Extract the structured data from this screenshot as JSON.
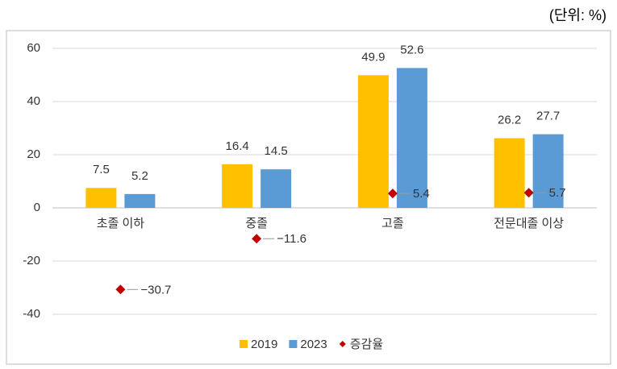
{
  "chart_data": {
    "type": "bar",
    "unit_label": "(단위:  %)",
    "categories": [
      "초졸 이하",
      "중졸",
      "고졸",
      "전문대졸 이상"
    ],
    "series": [
      {
        "name": "2019",
        "color": "#FFC000",
        "values": [
          7.5,
          16.4,
          49.9,
          26.2
        ]
      },
      {
        "name": "2023",
        "color": "#5B9BD5",
        "values": [
          5.2,
          14.5,
          52.6,
          27.7
        ]
      },
      {
        "name": "증감율",
        "color": "#C00000",
        "type": "scatter",
        "marker": "diamond",
        "values": [
          -30.7,
          -11.6,
          5.4,
          5.7
        ],
        "value_labels": [
          "−30.7",
          "−11.6",
          "5.4",
          "5.7"
        ]
      }
    ],
    "ylim": [
      -40,
      60
    ],
    "yticks": [
      -40,
      -20,
      0,
      20,
      40,
      60
    ],
    "grid": true,
    "legend": "bottom"
  }
}
